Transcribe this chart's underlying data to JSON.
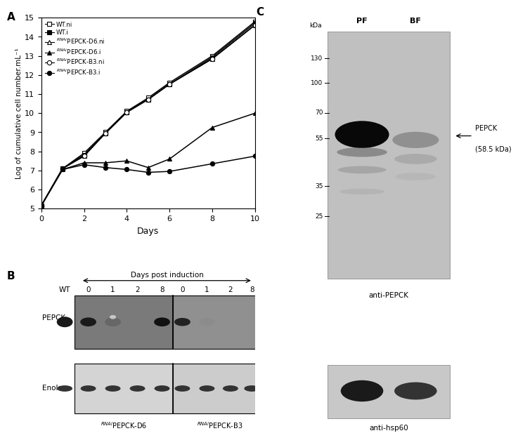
{
  "panel_A": {
    "xlabel": "Days",
    "ylabel": "Log of cumulative cell number.mL⁻¹",
    "xlim": [
      0,
      10
    ],
    "ylim": [
      5,
      15
    ],
    "yticks": [
      5,
      6,
      7,
      8,
      9,
      10,
      11,
      12,
      13,
      14,
      15
    ],
    "xticks": [
      0,
      2,
      4,
      6,
      8,
      10
    ],
    "series": [
      {
        "label": "WT.ni",
        "marker": "s",
        "fillstyle": "none",
        "x": [
          0,
          1,
          2,
          3,
          4,
          5,
          6,
          8,
          10
        ],
        "y": [
          5.15,
          7.1,
          7.9,
          9.0,
          10.1,
          10.8,
          11.6,
          13.0,
          14.8
        ]
      },
      {
        "label": "WT.i",
        "marker": "s",
        "fillstyle": "full",
        "x": [
          0,
          1,
          2,
          3,
          4,
          5,
          6,
          8,
          10
        ],
        "y": [
          5.15,
          7.1,
          7.82,
          8.95,
          10.05,
          10.72,
          11.52,
          12.93,
          14.72
        ]
      },
      {
        "label": "RNAiPEPCK-D6.ni",
        "marker": "^",
        "fillstyle": "none",
        "x": [
          0,
          1,
          2,
          3,
          4,
          5,
          6,
          8,
          10
        ],
        "y": [
          5.15,
          7.1,
          7.75,
          8.95,
          10.05,
          10.72,
          11.52,
          12.85,
          14.62
        ]
      },
      {
        "label": "RNAiPEPCK-D6.i",
        "marker": "^",
        "fillstyle": "full",
        "x": [
          0,
          1,
          2,
          3,
          4,
          5,
          6,
          8,
          10
        ],
        "y": [
          5.15,
          7.05,
          7.4,
          7.4,
          7.5,
          7.15,
          7.6,
          9.25,
          10.0
        ]
      },
      {
        "label": "RNAiPEPCK-B3.ni",
        "marker": "o",
        "fillstyle": "none",
        "x": [
          0,
          1,
          2,
          3,
          4,
          5,
          6,
          8,
          10
        ],
        "y": [
          5.15,
          7.1,
          7.75,
          8.95,
          10.05,
          10.72,
          11.52,
          12.85,
          14.62
        ]
      },
      {
        "label": "RNAiPEPCK-B3.i",
        "marker": "o",
        "fillstyle": "full",
        "x": [
          0,
          1,
          2,
          3,
          4,
          5,
          6,
          8,
          10
        ],
        "y": [
          5.15,
          7.05,
          7.3,
          7.15,
          7.05,
          6.9,
          6.95,
          7.35,
          7.75
        ]
      }
    ]
  },
  "panel_B": {
    "header": "Days post induction",
    "col_labels": [
      "WT",
      "0",
      "1",
      "2",
      "8",
      "0",
      "1",
      "2",
      "8"
    ],
    "row_labels": [
      "PEPCK",
      "Enolase"
    ],
    "clone_labels": [
      "RNAiPEPCK-D6",
      "RNAiPEPCK-B3"
    ]
  },
  "panel_C": {
    "col_labels": [
      "PF",
      "BF"
    ],
    "kda_labels": [
      "130",
      "100",
      "70",
      "55",
      "35",
      "25"
    ],
    "kda_values": [
      130,
      100,
      70,
      55,
      35,
      25
    ],
    "annotation": "PEPCK\n(58.5 kDa)",
    "sub_labels": [
      "anti-PEPCK",
      "anti-hsp60"
    ]
  }
}
